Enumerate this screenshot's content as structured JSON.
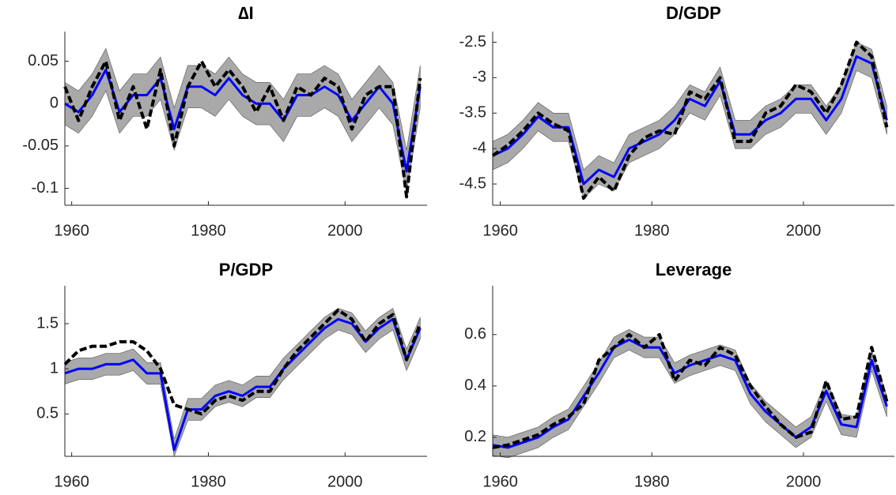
{
  "chart_data": [
    {
      "type": "line",
      "title": "∆I",
      "x": [
        1959,
        1961,
        1963,
        1965,
        1967,
        1969,
        1971,
        1973,
        1975,
        1977,
        1979,
        1981,
        1983,
        1985,
        1987,
        1989,
        1991,
        1993,
        1995,
        1997,
        1999,
        2001,
        2003,
        2005,
        2007,
        2009,
        2011
      ],
      "xlim": [
        1959,
        2012
      ],
      "xticks": [
        1960,
        1980,
        2000
      ],
      "ylim": [
        -0.12,
        0.085
      ],
      "yticks": [
        -0.1,
        -0.05,
        0,
        0.05
      ],
      "band": {
        "color": "#8c8c8c",
        "lower": [
          -0.025,
          -0.035,
          -0.015,
          0.015,
          -0.035,
          -0.015,
          -0.015,
          0.005,
          -0.055,
          -0.005,
          -0.005,
          -0.015,
          0.005,
          -0.015,
          -0.025,
          -0.025,
          -0.045,
          -0.015,
          -0.015,
          -0.005,
          -0.015,
          -0.045,
          -0.025,
          -0.005,
          -0.025,
          -0.105,
          -0.005
        ],
        "upper": [
          0.025,
          0.015,
          0.035,
          0.065,
          0.015,
          0.035,
          0.035,
          0.055,
          -0.005,
          0.045,
          0.045,
          0.035,
          0.055,
          0.035,
          0.025,
          0.025,
          0.005,
          0.035,
          0.035,
          0.045,
          0.035,
          0.005,
          0.025,
          0.045,
          0.025,
          -0.055,
          0.045
        ]
      },
      "series": [
        {
          "color": "#0000ff",
          "values": [
            0,
            -0.01,
            0.01,
            0.04,
            -0.01,
            0.01,
            0.01,
            0.03,
            -0.03,
            0.02,
            0.02,
            0.01,
            0.03,
            0.01,
            0,
            0,
            -0.02,
            0.01,
            0.01,
            0.02,
            0.01,
            -0.02,
            0,
            0.02,
            0,
            -0.08,
            0.02
          ]
        },
        {
          "color": "#000000",
          "dashed": true,
          "values": [
            0.02,
            -0.02,
            0.02,
            0.05,
            -0.02,
            0.02,
            -0.03,
            0.04,
            -0.05,
            0.02,
            0.05,
            0.02,
            0.04,
            0.02,
            -0.01,
            0.02,
            -0.02,
            0.02,
            0.01,
            0.03,
            0.02,
            -0.03,
            0.01,
            0.02,
            0.02,
            -0.11,
            0.03
          ]
        }
      ]
    },
    {
      "type": "line",
      "title": "D/GDP",
      "x": [
        1959,
        1961,
        1963,
        1965,
        1967,
        1969,
        1971,
        1973,
        1975,
        1977,
        1979,
        1981,
        1983,
        1985,
        1987,
        1989,
        1991,
        1993,
        1995,
        1997,
        1999,
        2001,
        2003,
        2005,
        2007,
        2009,
        2011
      ],
      "xlim": [
        1959,
        2012
      ],
      "xticks": [
        1960,
        1980,
        2000
      ],
      "ylim": [
        -4.8,
        -2.35
      ],
      "yticks": [
        -4.5,
        -4,
        -3.5,
        -3,
        -2.5
      ],
      "band": {
        "color": "#8c8c8c",
        "lower": [
          -4.3,
          -4.2,
          -4.0,
          -3.75,
          -3.9,
          -3.9,
          -4.7,
          -4.5,
          -4.6,
          -4.2,
          -4.1,
          -4.0,
          -3.8,
          -3.5,
          -3.6,
          -3.25,
          -4.0,
          -4.0,
          -3.8,
          -3.7,
          -3.5,
          -3.5,
          -3.8,
          -3.5,
          -2.9,
          -3.0,
          -3.8
        ],
        "upper": [
          -3.9,
          -3.8,
          -3.6,
          -3.35,
          -3.5,
          -3.5,
          -4.3,
          -4.1,
          -4.2,
          -3.8,
          -3.7,
          -3.6,
          -3.4,
          -3.1,
          -3.2,
          -2.85,
          -3.6,
          -3.6,
          -3.4,
          -3.3,
          -3.1,
          -3.1,
          -3.4,
          -3.1,
          -2.5,
          -2.6,
          -3.4
        ]
      },
      "series": [
        {
          "color": "#0000ff",
          "values": [
            -4.1,
            -4.0,
            -3.8,
            -3.55,
            -3.7,
            -3.7,
            -4.5,
            -4.3,
            -4.4,
            -4.0,
            -3.9,
            -3.8,
            -3.6,
            -3.3,
            -3.4,
            -3.05,
            -3.8,
            -3.8,
            -3.6,
            -3.5,
            -3.3,
            -3.3,
            -3.6,
            -3.3,
            -2.7,
            -2.8,
            -3.6
          ]
        },
        {
          "color": "#000000",
          "dashed": true,
          "values": [
            -4.1,
            -3.95,
            -3.75,
            -3.5,
            -3.65,
            -3.75,
            -4.7,
            -4.4,
            -4.6,
            -4.1,
            -3.85,
            -3.75,
            -3.8,
            -3.2,
            -3.3,
            -3.0,
            -3.9,
            -3.9,
            -3.5,
            -3.4,
            -3.1,
            -3.2,
            -3.5,
            -3.1,
            -2.5,
            -2.7,
            -3.7
          ]
        }
      ]
    },
    {
      "type": "line",
      "title": "P/GDP",
      "x": [
        1959,
        1961,
        1963,
        1965,
        1967,
        1969,
        1971,
        1973,
        1975,
        1977,
        1979,
        1981,
        1983,
        1985,
        1987,
        1989,
        1991,
        1993,
        1995,
        1997,
        1999,
        2001,
        2003,
        2005,
        2007,
        2009,
        2011
      ],
      "xlim": [
        1959,
        2012
      ],
      "xticks": [
        1960,
        1980,
        2000
      ],
      "ylim": [
        0.03,
        1.92
      ],
      "yticks": [
        0.5,
        1,
        1.5
      ],
      "band": {
        "color": "#8c8c8c",
        "lower": [
          0.83,
          0.88,
          0.88,
          0.93,
          0.93,
          0.98,
          0.83,
          0.83,
          0.03,
          0.43,
          0.43,
          0.58,
          0.63,
          0.58,
          0.68,
          0.68,
          0.88,
          1.03,
          1.18,
          1.33,
          1.43,
          1.38,
          1.18,
          1.33,
          1.43,
          0.98,
          1.33
        ],
        "upper": [
          1.07,
          1.12,
          1.12,
          1.17,
          1.17,
          1.22,
          1.07,
          1.07,
          0.22,
          0.67,
          0.67,
          0.82,
          0.87,
          0.82,
          0.92,
          0.92,
          1.12,
          1.27,
          1.42,
          1.57,
          1.67,
          1.62,
          1.42,
          1.57,
          1.67,
          1.22,
          1.57
        ]
      },
      "series": [
        {
          "color": "#0000ff",
          "values": [
            0.95,
            1.0,
            1.0,
            1.05,
            1.05,
            1.1,
            0.95,
            0.95,
            0.1,
            0.55,
            0.55,
            0.7,
            0.75,
            0.7,
            0.8,
            0.8,
            1.0,
            1.15,
            1.3,
            1.45,
            1.55,
            1.5,
            1.3,
            1.45,
            1.55,
            1.1,
            1.45
          ]
        },
        {
          "color": "#000000",
          "dashed": true,
          "values": [
            1.05,
            1.2,
            1.25,
            1.25,
            1.3,
            1.3,
            1.2,
            1.0,
            0.6,
            0.55,
            0.5,
            0.65,
            0.7,
            0.65,
            0.75,
            0.75,
            1.0,
            1.2,
            1.35,
            1.5,
            1.65,
            1.55,
            1.3,
            1.5,
            1.6,
            1.1,
            1.5
          ]
        }
      ]
    },
    {
      "type": "line",
      "title": "Leverage",
      "x": [
        1959,
        1961,
        1963,
        1965,
        1967,
        1969,
        1971,
        1973,
        1975,
        1977,
        1979,
        1981,
        1983,
        1985,
        1987,
        1989,
        1991,
        1993,
        1995,
        1997,
        1999,
        2001,
        2003,
        2005,
        2007,
        2009,
        2011
      ],
      "xlim": [
        1959,
        2012
      ],
      "xticks": [
        1960,
        1980,
        2000
      ],
      "ylim": [
        0.126,
        0.79
      ],
      "yticks": [
        0.2,
        0.4,
        0.6
      ],
      "band": {
        "color": "#8c8c8c",
        "lower": [
          0.13,
          0.12,
          0.14,
          0.16,
          0.2,
          0.23,
          0.32,
          0.41,
          0.51,
          0.54,
          0.51,
          0.51,
          0.41,
          0.44,
          0.46,
          0.48,
          0.46,
          0.33,
          0.26,
          0.21,
          0.16,
          0.2,
          0.34,
          0.21,
          0.2,
          0.46,
          0.28
        ],
        "upper": [
          0.21,
          0.2,
          0.22,
          0.24,
          0.28,
          0.31,
          0.4,
          0.49,
          0.59,
          0.62,
          0.59,
          0.59,
          0.49,
          0.52,
          0.54,
          0.56,
          0.54,
          0.41,
          0.34,
          0.29,
          0.24,
          0.28,
          0.42,
          0.29,
          0.28,
          0.54,
          0.36
        ]
      },
      "series": [
        {
          "color": "#0000ff",
          "values": [
            0.17,
            0.16,
            0.18,
            0.2,
            0.24,
            0.27,
            0.36,
            0.45,
            0.55,
            0.58,
            0.55,
            0.55,
            0.45,
            0.48,
            0.5,
            0.52,
            0.5,
            0.37,
            0.3,
            0.25,
            0.2,
            0.24,
            0.38,
            0.25,
            0.24,
            0.5,
            0.32
          ]
        },
        {
          "color": "#000000",
          "dashed": true,
          "values": [
            0.16,
            0.17,
            0.19,
            0.21,
            0.25,
            0.28,
            0.33,
            0.5,
            0.55,
            0.6,
            0.55,
            0.6,
            0.42,
            0.5,
            0.48,
            0.55,
            0.52,
            0.4,
            0.32,
            0.25,
            0.2,
            0.22,
            0.42,
            0.27,
            0.28,
            0.55,
            0.34
          ]
        }
      ]
    }
  ]
}
